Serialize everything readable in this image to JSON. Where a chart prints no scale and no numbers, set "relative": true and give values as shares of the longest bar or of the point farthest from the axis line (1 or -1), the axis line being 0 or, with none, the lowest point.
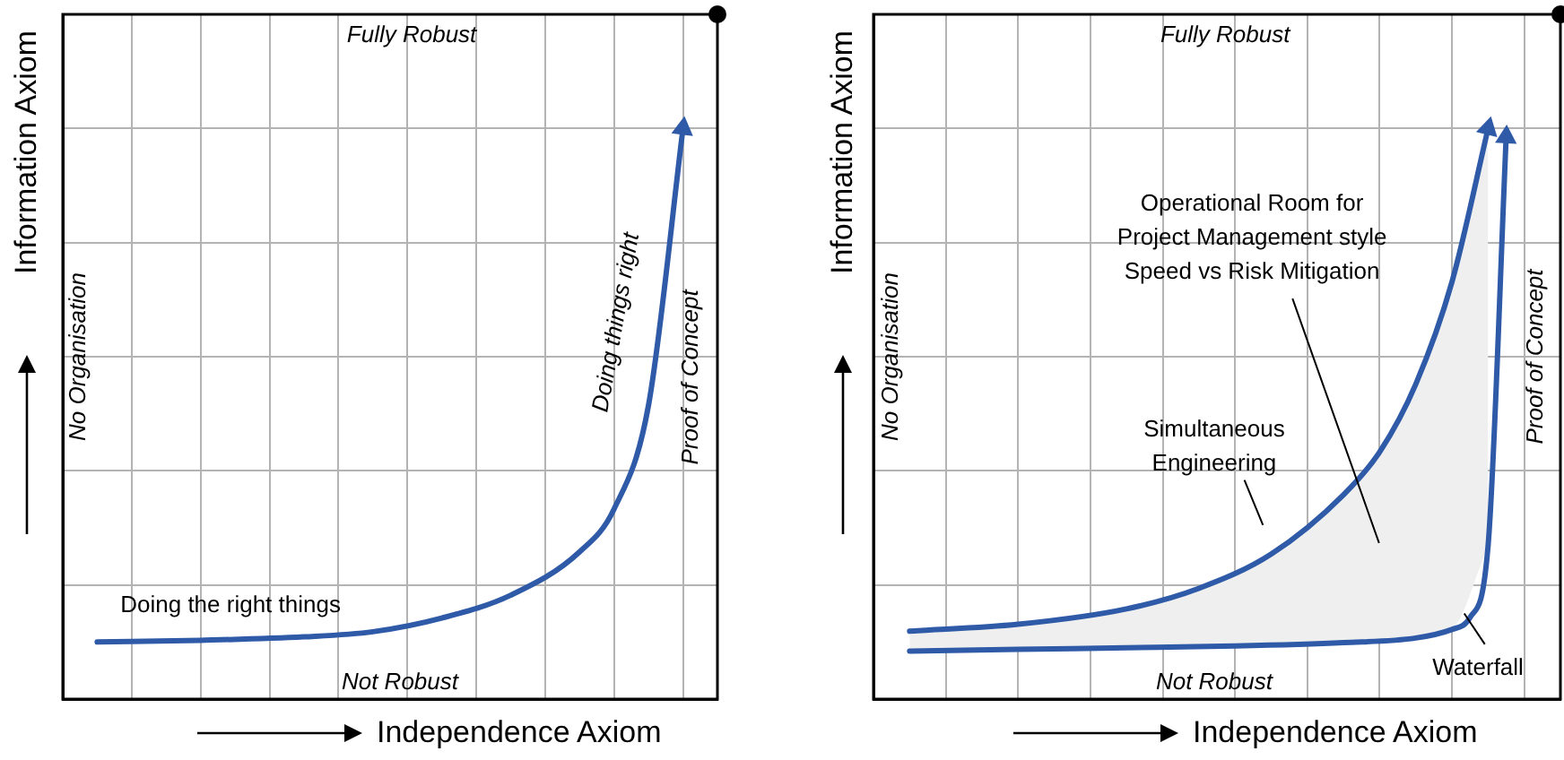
{
  "chart_data": [
    {
      "type": "line",
      "relative": true,
      "grid": true,
      "tick_labels": false,
      "marker": "none",
      "xlabel": "Independence Axiom",
      "ylabel": "Information Axiom",
      "categories": [
        null,
        null,
        null,
        null,
        null,
        null,
        null,
        null,
        null,
        null,
        null,
        null,
        null,
        null,
        null,
        null,
        null,
        null,
        null,
        null
      ],
      "series": [
        {
          "color": "#2e5aa8",
          "values": [
            null,
            0.1,
            null,
            null,
            0.103,
            null,
            null,
            0.109,
            null,
            0.118,
            null,
            0.142,
            null,
            0.182,
            null,
            0.258,
            0.333,
            0.515,
            1,
            null
          ]
        }
      ],
      "annotations": [
        "Fully Robust",
        "Not Robust",
        "No Organisation",
        "Proof of Concept",
        "Doing the right things",
        "Doing things right"
      ]
    },
    {
      "type": "line",
      "relative": true,
      "grid": true,
      "tick_labels": false,
      "marker": "none",
      "xlabel": "Independence Axiom",
      "ylabel": "Information Axiom",
      "categories": [
        null,
        null,
        null,
        null,
        null,
        null,
        null,
        null,
        null,
        null,
        null,
        null,
        null,
        null,
        null,
        null,
        null,
        null,
        null,
        null,
        null,
        null,
        null,
        null,
        null,
        null,
        null,
        null,
        null,
        null,
        null,
        null,
        null,
        null,
        null,
        null,
        null,
        null,
        null
      ],
      "series": [
        {
          "color": "#2e5aa8",
          "values": [
            null,
            null,
            0.119,
            null,
            null,
            null,
            null,
            null,
            0.131,
            null,
            null,
            null,
            null,
            null,
            0.158,
            null,
            null,
            null,
            0.194,
            null,
            null,
            null,
            0.254,
            null,
            null,
            null,
            0.358,
            null,
            0.433,
            null,
            0.552,
            null,
            0.731,
            null,
            1,
            null,
            null,
            null,
            null
          ],
          "lower": [
            null,
            null,
            0.084,
            null,
            null,
            null,
            null,
            null,
            0.087,
            null,
            null,
            null,
            null,
            null,
            0.09,
            null,
            null,
            null,
            0.092,
            null,
            null,
            null,
            0.095,
            null,
            null,
            null,
            0.099,
            null,
            0.103,
            null,
            0.107,
            null,
            0.122,
            null,
            0.269,
            null,
            null,
            null,
            null
          ],
          "upper": [
            null,
            null,
            0.119,
            null,
            null,
            null,
            null,
            null,
            0.131,
            null,
            null,
            null,
            null,
            null,
            0.158,
            null,
            null,
            null,
            0.194,
            null,
            null,
            null,
            0.254,
            null,
            null,
            null,
            0.358,
            null,
            0.433,
            null,
            0.552,
            null,
            0.731,
            null,
            1,
            null,
            null,
            null,
            null
          ]
        },
        {
          "color": "#2e5aa8",
          "values": [
            null,
            null,
            0.084,
            null,
            null,
            null,
            null,
            null,
            0.087,
            null,
            null,
            null,
            null,
            null,
            0.09,
            null,
            null,
            null,
            null,
            null,
            0.093,
            null,
            null,
            null,
            null,
            null,
            0.099,
            null,
            null,
            null,
            0.107,
            null,
            0.122,
            0.143,
            0.269,
            0.985,
            null,
            null,
            null
          ]
        }
      ],
      "annotations": [
        "Fully Robust",
        "Not Robust",
        "No Organisation",
        "Proof of Concept",
        "Operational Room for\nProject Management style\nSpeed vs Risk Mitigation",
        "Simultaneous\nEngineering",
        "Waterfall"
      ]
    }
  ]
}
